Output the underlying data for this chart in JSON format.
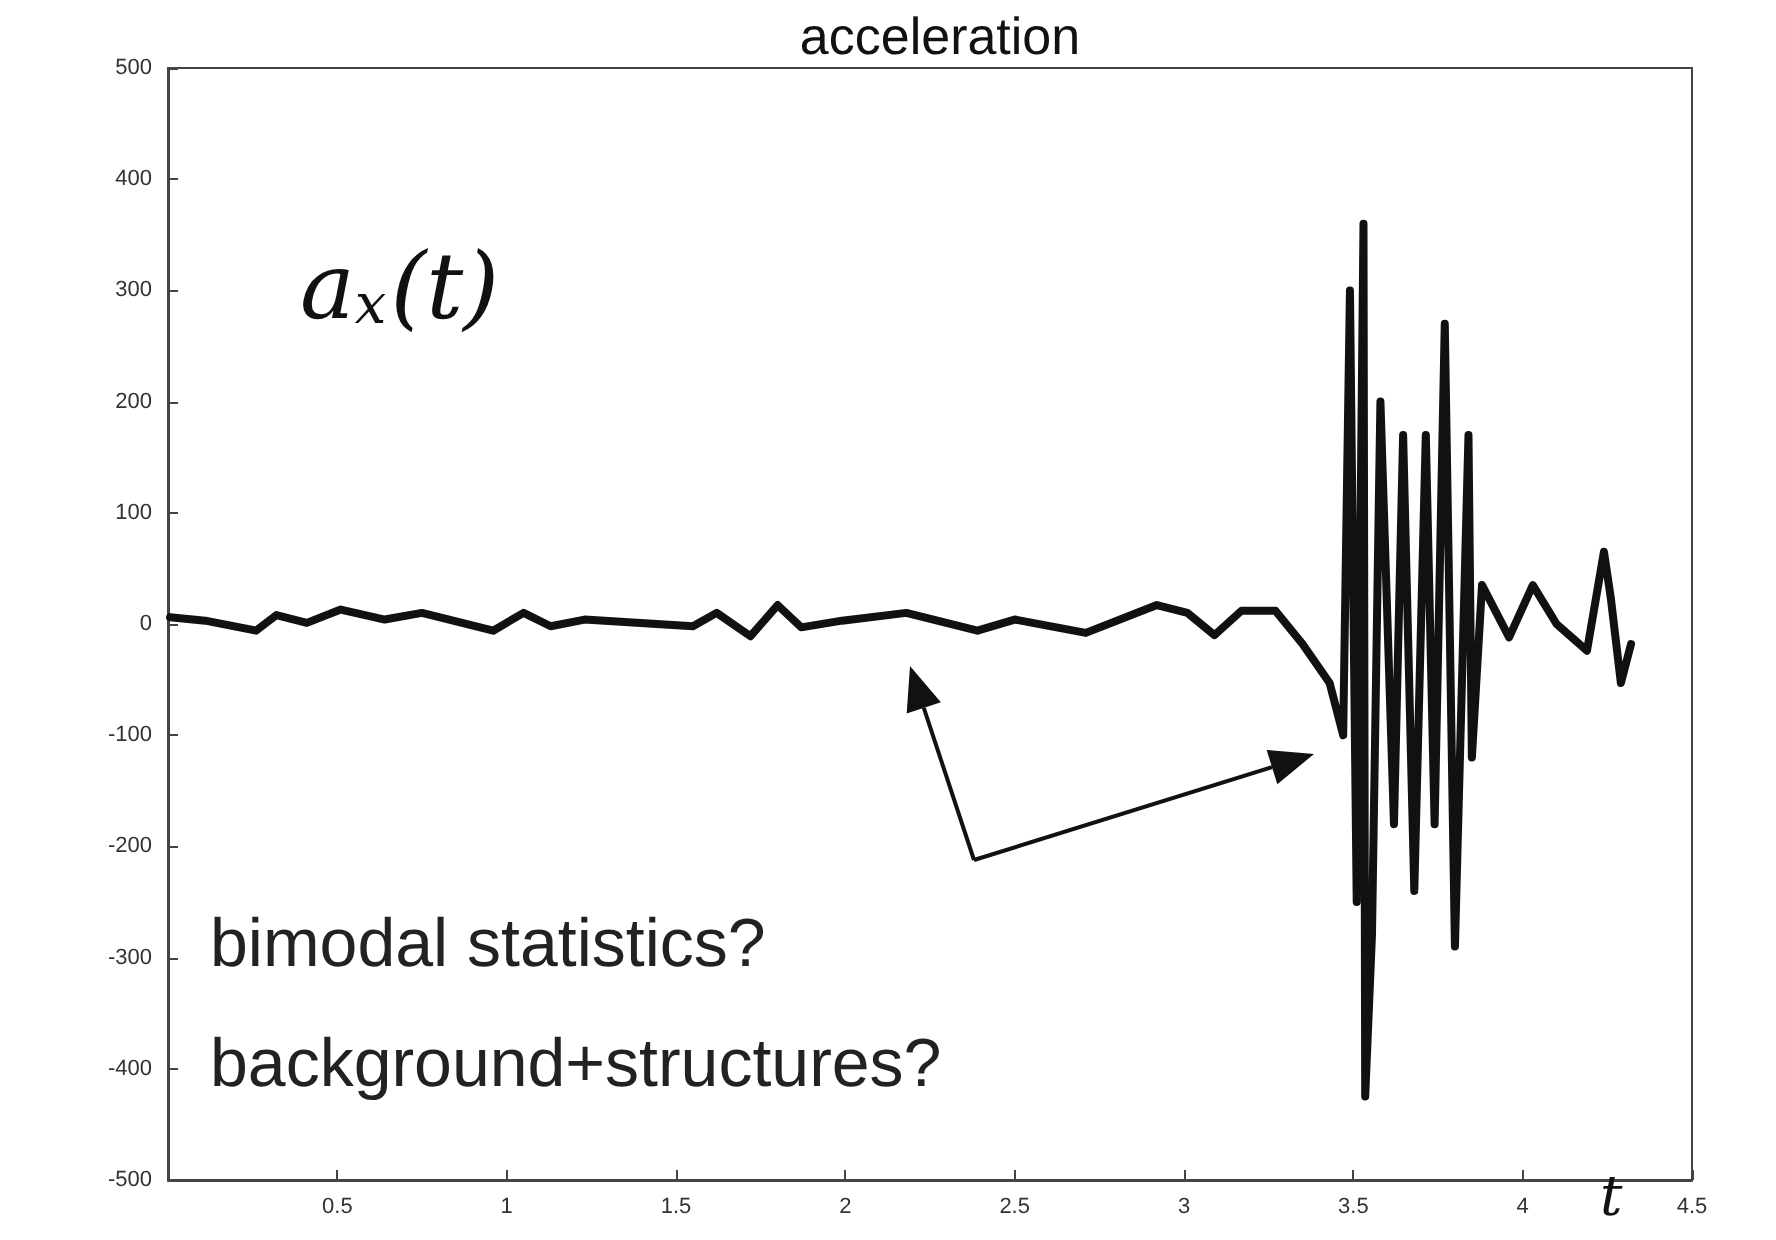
{
  "chart_data": {
    "type": "line",
    "title": "acceleration",
    "xlabel": "t",
    "annotations": [
      "a$_{x}$(t)",
      "bimodal statistics?",
      "background+structures?"
    ],
    "xlim": [
      0,
      4.5
    ],
    "xticks": [
      0.5,
      1,
      1.5,
      2,
      2.5,
      3,
      3.5,
      4,
      4.5
    ],
    "ylim": [
      -500,
      500
    ],
    "yticks": [
      -500,
      -400,
      -300,
      -200,
      -100,
      0,
      100,
      200,
      300,
      400,
      500
    ],
    "grid": false,
    "marker": "none",
    "line_style": "solid",
    "series": [
      {
        "color": "#111111",
        "x": [
          0.006,
          0.11,
          0.26,
          0.32,
          0.41,
          0.51,
          0.64,
          0.75,
          0.96,
          1.05,
          1.13,
          1.23,
          1.55,
          1.62,
          1.72,
          1.8,
          1.87,
          1.99,
          2.18,
          2.39,
          2.5,
          2.71,
          2.92,
          3.01,
          3.09,
          3.17,
          3.27,
          3.35,
          3.43,
          3.47,
          3.49,
          3.51,
          3.53,
          3.535,
          3.555,
          3.58,
          3.62,
          3.647,
          3.68,
          3.714,
          3.74,
          3.77,
          3.8,
          3.84,
          3.85,
          3.88,
          3.96,
          4.03,
          4.1,
          4.19,
          4.24,
          4.26,
          4.29,
          4.32
        ],
        "values": [
          6,
          3,
          -6,
          8,
          1,
          13,
          4,
          10,
          -6,
          10,
          -2,
          4,
          -2,
          10,
          -11,
          17,
          -3,
          3,
          10,
          -6,
          4,
          -8,
          17,
          10,
          -10,
          12,
          12,
          -18,
          -53,
          -100,
          300,
          -250,
          360,
          -425,
          -280,
          200,
          -180,
          170,
          -240,
          170,
          -180,
          270,
          -290,
          170,
          -120,
          35,
          -12,
          35,
          0,
          -24,
          65,
          24,
          -53,
          -18
        ]
      }
    ]
  }
}
